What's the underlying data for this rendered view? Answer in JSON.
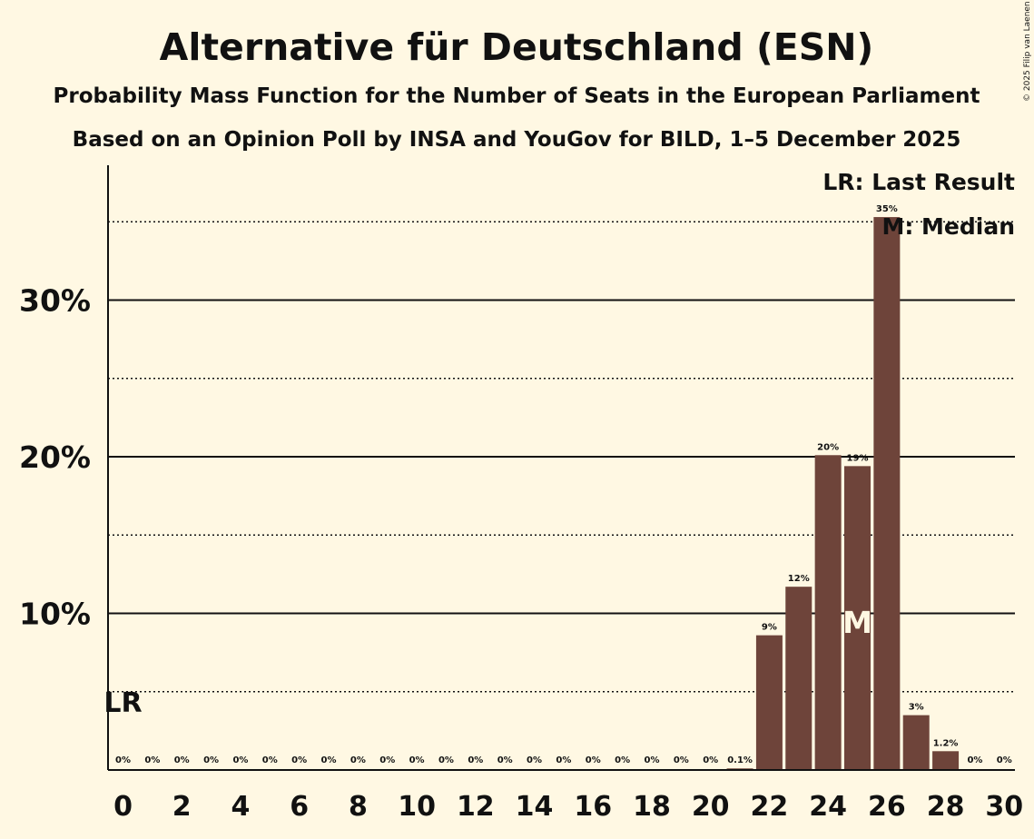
{
  "copyright": "© 2025 Filip van Laenen",
  "chart_data": {
    "type": "bar",
    "title": "Alternative für Deutschland (ESN)",
    "subtitle": "Probability Mass Function for the Number of Seats in the European Parliament",
    "source": "Based on an Opinion Poll by INSA and YouGov for BILD, 1–5 December 2025",
    "xlabel": "",
    "ylabel": "",
    "ylim": [
      0,
      38
    ],
    "y_ticks": [
      {
        "value": 10,
        "label": "10%"
      },
      {
        "value": 20,
        "label": "20%"
      },
      {
        "value": 30,
        "label": "30%"
      }
    ],
    "dotted_gridlines": [
      5,
      15,
      25,
      35
    ],
    "x_tick_labels": [
      "0",
      "2",
      "4",
      "6",
      "8",
      "10",
      "12",
      "14",
      "16",
      "18",
      "20",
      "22",
      "24",
      "26",
      "28",
      "30"
    ],
    "categories": [
      0,
      1,
      2,
      3,
      4,
      5,
      6,
      7,
      8,
      9,
      10,
      11,
      12,
      13,
      14,
      15,
      16,
      17,
      18,
      19,
      20,
      21,
      22,
      23,
      24,
      25,
      26,
      27,
      28,
      29,
      30
    ],
    "values": [
      0,
      0,
      0,
      0,
      0,
      0,
      0,
      0,
      0,
      0,
      0,
      0,
      0,
      0,
      0,
      0,
      0,
      0,
      0,
      0,
      0,
      0.1,
      8.6,
      11.7,
      20.1,
      19.4,
      35.3,
      3.5,
      1.2,
      0,
      0
    ],
    "value_labels": [
      "0%",
      "0%",
      "0%",
      "0%",
      "0%",
      "0%",
      "0%",
      "0%",
      "0%",
      "0%",
      "0%",
      "0%",
      "0%",
      "0%",
      "0%",
      "0%",
      "0%",
      "0%",
      "0%",
      "0%",
      "0%",
      "0.1%",
      "9%",
      "12%",
      "20%",
      "19%",
      "35%",
      "3%",
      "1.2%",
      "0%",
      "0%"
    ],
    "last_result_seat": 0,
    "median_seat": 25,
    "last_result_marker": "LR",
    "median_marker": "M",
    "legend": [
      "LR: Last Result",
      "M: Median"
    ],
    "colors": {
      "bar": "#6e443a",
      "background": "#fff8e3",
      "text": "#111111"
    }
  }
}
